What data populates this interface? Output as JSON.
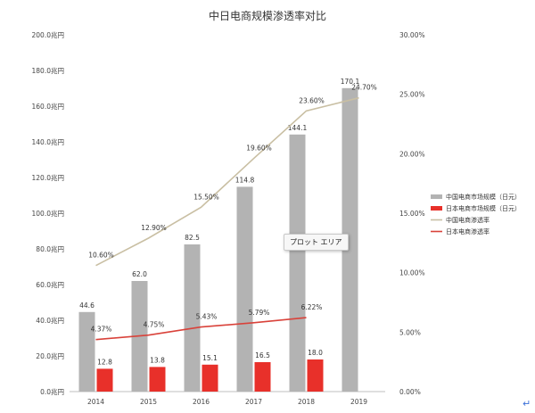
{
  "chart_data": {
    "type": "bar",
    "title": "中日电商规模渗透率对比",
    "categories": [
      "2014",
      "2015",
      "2016",
      "2017",
      "2018",
      "2019"
    ],
    "series": [
      {
        "name": "中国电商市场规模（日元）",
        "type": "bar",
        "axis": "left",
        "color": "#b3b3b3",
        "values": [
          44.6,
          62.0,
          82.5,
          114.8,
          144.1,
          170.1
        ],
        "labels": [
          "44.6",
          "62.0",
          "82.5",
          "114.8",
          "144.1",
          "170.1"
        ]
      },
      {
        "name": "日本电商市场规模（日元）",
        "type": "bar",
        "axis": "left",
        "color": "#e8302a",
        "values": [
          12.8,
          13.8,
          15.1,
          16.5,
          18.0,
          null
        ],
        "labels": [
          "12.8",
          "13.8",
          "15.1",
          "16.5",
          "18.0",
          ""
        ]
      },
      {
        "name": "中国电商渗透率",
        "type": "line",
        "axis": "right",
        "color": "#c9bfa3",
        "values": [
          10.6,
          12.9,
          15.5,
          19.6,
          23.6,
          24.7
        ],
        "labels": [
          "10.60%",
          "12.90%",
          "15.50%",
          "19.60%",
          "23.60%",
          "24.70%"
        ]
      },
      {
        "name": "日本电商渗透率",
        "type": "line",
        "axis": "right",
        "color": "#d9423a",
        "values": [
          4.37,
          4.75,
          5.43,
          5.79,
          6.22,
          null
        ],
        "labels": [
          "4.37%",
          "4.75%",
          "5.43%",
          "5.79%",
          "6.22%",
          ""
        ]
      }
    ],
    "y_left": {
      "ylim": [
        0,
        200
      ],
      "ticks": [
        0,
        20,
        40,
        60,
        80,
        100,
        120,
        140,
        160,
        180,
        200
      ],
      "tick_labels": [
        "0.0兆円",
        "20.0兆円",
        "40.0兆円",
        "60.0兆円",
        "80.0兆円",
        "100.0兆円",
        "120.0兆円",
        "140.0兆円",
        "160.0兆円",
        "180.0兆円",
        "200.0兆円"
      ]
    },
    "y_right": {
      "ylim": [
        0,
        30
      ],
      "ticks": [
        0,
        5,
        10,
        15,
        20,
        25,
        30
      ],
      "tick_labels": [
        "0.00%",
        "5.00%",
        "10.00%",
        "15.00%",
        "20.00%",
        "25.00%",
        "30.00%"
      ]
    },
    "xlabel": "",
    "ylabel": "",
    "grid": false,
    "legend_position": "right"
  },
  "tooltip": {
    "text": "プロット エリア"
  },
  "return_glyph": "↵"
}
